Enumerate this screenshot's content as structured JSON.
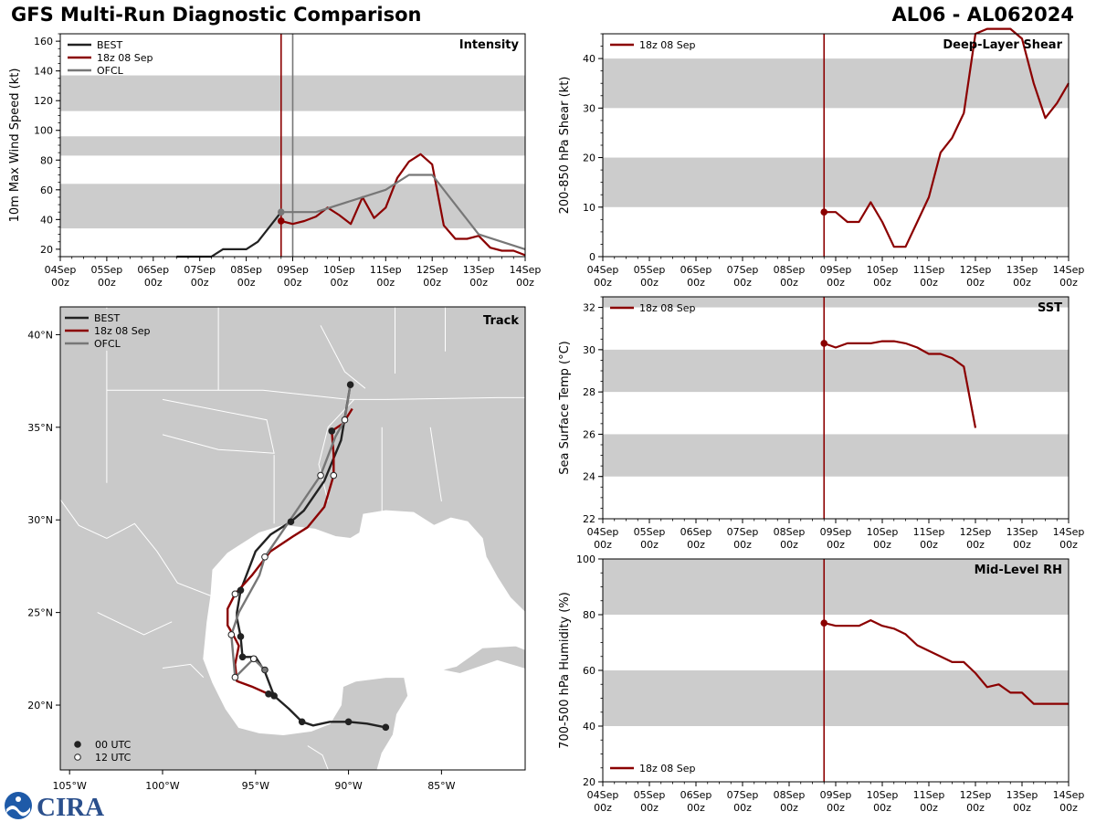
{
  "header": {
    "title": "GFS Multi-Run Diagnostic Comparison",
    "storm_id": "AL06 - AL062024"
  },
  "colors": {
    "best": "#222222",
    "run": "#8b0000",
    "ofcl": "#777777",
    "band": "#cccccc",
    "land": "#c9c9c9",
    "noaa": "#1e5aa8",
    "cira": "#2a4f8c"
  },
  "logo": {
    "noaa_icon": "noaa-logo-icon",
    "cira_text": "CIRA"
  },
  "time_axis": {
    "ticks": [
      [
        "04Sep",
        "00z"
      ],
      [
        "05Sep",
        "00z"
      ],
      [
        "06Sep",
        "00z"
      ],
      [
        "07Sep",
        "00z"
      ],
      [
        "08Sep",
        "00z"
      ],
      [
        "09Sep",
        "00z"
      ],
      [
        "10Sep",
        "00z"
      ],
      [
        "11Sep",
        "00z"
      ],
      [
        "12Sep",
        "00z"
      ],
      [
        "13Sep",
        "00z"
      ],
      [
        "14Sep",
        "00z"
      ]
    ]
  },
  "chart_data": [
    {
      "id": "intensity",
      "type": "line",
      "title": "Intensity",
      "title_loc": "top-right",
      "ylabel": "10m Max Wind Speed (kt)",
      "ylim": [
        15,
        165
      ],
      "yticks": [
        20,
        40,
        60,
        80,
        100,
        120,
        140,
        160
      ],
      "xlim_days": [
        0,
        10
      ],
      "bands": [
        [
          34,
          64
        ],
        [
          83,
          96
        ],
        [
          113,
          137
        ]
      ],
      "vlines": [
        {
          "x": 4.75,
          "color": "run"
        },
        {
          "x": 5.0,
          "color": "ofcl"
        }
      ],
      "legend_loc": "top-left",
      "series": [
        {
          "name": "BEST",
          "color": "best",
          "x": [
            2.5,
            3.25,
            3.5,
            4.0,
            4.25,
            4.75
          ],
          "y": [
            15,
            15,
            20,
            20,
            25,
            45
          ]
        },
        {
          "name": "18z 08 Sep",
          "color": "run",
          "marker_first": true,
          "x": [
            4.75,
            5.0,
            5.25,
            5.5,
            5.75,
            6.0,
            6.25,
            6.5,
            6.75,
            7.0,
            7.25,
            7.5,
            7.75,
            8.0,
            8.25,
            8.5,
            8.75,
            9.0,
            9.25,
            9.5,
            9.75,
            10.0
          ],
          "y": [
            39,
            37,
            39,
            42,
            48,
            43,
            37,
            55,
            41,
            48,
            68,
            79,
            84,
            77,
            36,
            27,
            27,
            29,
            21,
            19,
            19,
            16
          ]
        },
        {
          "name": "OFCL",
          "color": "ofcl",
          "marker_first": true,
          "x": [
            4.75,
            5.0,
            5.5,
            6.5,
            7.0,
            7.5,
            8.0,
            9.0,
            10.0
          ],
          "y": [
            45,
            45,
            45,
            55,
            60,
            70,
            70,
            30,
            20
          ]
        }
      ]
    },
    {
      "id": "shear",
      "type": "line",
      "title": "Deep-Layer Shear",
      "title_loc": "top-right",
      "ylabel": "200-850 hPa Shear (kt)",
      "ylim": [
        0,
        45
      ],
      "yticks": [
        0,
        10,
        20,
        30,
        40
      ],
      "xlim_days": [
        0,
        10
      ],
      "bands": [
        [
          10,
          20
        ],
        [
          30,
          40
        ]
      ],
      "vlines": [
        {
          "x": 4.75,
          "color": "run"
        }
      ],
      "legend_loc": "top-left",
      "series": [
        {
          "name": "18z 08 Sep",
          "color": "run",
          "marker_first": true,
          "x": [
            4.75,
            5.0,
            5.25,
            5.5,
            5.75,
            6.0,
            6.25,
            6.5,
            6.75,
            7.0,
            7.25,
            7.5,
            7.75,
            8.0,
            8.25,
            8.5,
            8.75,
            9.0,
            9.25,
            9.5,
            9.75,
            10.0
          ],
          "y": [
            9,
            9,
            7,
            7,
            11,
            7,
            2,
            2,
            7,
            12,
            21,
            24,
            29,
            45,
            46,
            46,
            46,
            44,
            35,
            28,
            31,
            35
          ]
        }
      ]
    },
    {
      "id": "sst",
      "type": "line",
      "title": "SST",
      "title_loc": "top-right",
      "ylabel": "Sea Surface Temp (°C)",
      "ylim": [
        22,
        32.5
      ],
      "yticks": [
        22,
        24,
        26,
        28,
        30,
        32
      ],
      "xlim_days": [
        0,
        10
      ],
      "bands": [
        [
          24,
          26
        ],
        [
          28,
          30
        ],
        [
          32,
          32.5
        ]
      ],
      "vlines": [
        {
          "x": 4.75,
          "color": "run"
        }
      ],
      "legend_loc": "top-left",
      "series": [
        {
          "name": "18z 08 Sep",
          "color": "run",
          "marker_first": true,
          "x": [
            4.75,
            5.0,
            5.25,
            5.5,
            5.75,
            6.0,
            6.25,
            6.5,
            6.75,
            7.0,
            7.25,
            7.5,
            7.75,
            8.0
          ],
          "y": [
            30.3,
            30.1,
            30.3,
            30.3,
            30.3,
            30.4,
            30.4,
            30.3,
            30.1,
            29.8,
            29.8,
            29.6,
            29.2,
            26.3
          ]
        }
      ]
    },
    {
      "id": "rh",
      "type": "line",
      "title": "Mid-Level RH",
      "title_loc": "top-right",
      "ylabel": "700-500 hPa Humidity (%)",
      "ylim": [
        20,
        100
      ],
      "yticks": [
        20,
        40,
        60,
        80,
        100
      ],
      "xlim_days": [
        0,
        10
      ],
      "bands": [
        [
          40,
          60
        ],
        [
          80,
          100
        ]
      ],
      "vlines": [
        {
          "x": 4.75,
          "color": "run"
        }
      ],
      "legend_loc": "bottom-left",
      "series": [
        {
          "name": "18z 08 Sep",
          "color": "run",
          "marker_first": true,
          "x": [
            4.75,
            5.0,
            5.25,
            5.5,
            5.75,
            6.0,
            6.25,
            6.5,
            6.75,
            7.0,
            7.25,
            7.5,
            7.75,
            8.0,
            8.25,
            8.5,
            8.75,
            9.0,
            9.25,
            9.5,
            9.75,
            10.0
          ],
          "y": [
            77,
            76,
            76,
            76,
            78,
            76,
            75,
            73,
            69,
            67,
            65,
            63,
            63,
            59,
            54,
            55,
            52,
            52,
            48,
            48,
            48,
            48
          ]
        }
      ]
    },
    {
      "id": "track",
      "type": "scatter",
      "title": "Track",
      "title_loc": "top-right",
      "xlim_lon": [
        -105.5,
        -80.5
      ],
      "ylim_lat": [
        16.5,
        41.5
      ],
      "xticks": [
        -105,
        -100,
        -95,
        -90,
        -85
      ],
      "xtick_labels": [
        "105°W",
        "100°W",
        "95°W",
        "90°W",
        "85°W"
      ],
      "yticks": [
        20,
        25,
        30,
        35,
        40
      ],
      "ytick_labels": [
        "20°N",
        "25°N",
        "30°N",
        "35°N",
        "40°N"
      ],
      "legend_loc": "top-left",
      "marker_legend": [
        {
          "label": "00 UTC",
          "fill": "filled"
        },
        {
          "label": "12 UTC",
          "fill": "open"
        }
      ],
      "series": [
        {
          "name": "BEST",
          "color": "best",
          "lon": [
            -88.0,
            -89.0,
            -90.0,
            -91.0,
            -91.9,
            -92.5,
            -93.2,
            -94.0,
            -94.5,
            -95.0,
            -95.7,
            -95.8,
            -96.0,
            -96.0,
            -95.8,
            -95.0,
            -94.2,
            -93.1,
            -92.4,
            -91.3,
            -90.4,
            -89.9
          ],
          "lat": [
            18.8,
            19.0,
            19.1,
            19.1,
            18.9,
            19.1,
            19.8,
            20.5,
            21.8,
            22.6,
            22.6,
            23.7,
            24.7,
            25.0,
            26.2,
            28.3,
            29.2,
            29.9,
            30.5,
            32.1,
            34.3,
            37.3
          ],
          "dots": [
            {
              "i": 0,
              "open": false
            },
            {
              "i": 2,
              "open": false
            },
            {
              "i": 5,
              "open": false
            },
            {
              "i": 7,
              "open": false
            },
            {
              "i": 10,
              "open": false
            },
            {
              "i": 11,
              "open": false
            },
            {
              "i": 14,
              "open": false
            },
            {
              "i": 17,
              "open": false
            },
            {
              "i": 21,
              "open": false
            }
          ]
        },
        {
          "name": "18z 08 Sep",
          "color": "run",
          "lon": [
            -94.3,
            -95.2,
            -96.0,
            -96.1,
            -95.9,
            -96.2,
            -96.5,
            -96.5,
            -96.1,
            -95.2,
            -94.2,
            -93.0,
            -92.2,
            -91.3,
            -90.8,
            -90.8,
            -90.9,
            -90.3,
            -89.8
          ],
          "lat": [
            20.6,
            21.0,
            21.3,
            22.2,
            23.2,
            23.8,
            24.3,
            25.2,
            26.0,
            27.0,
            28.3,
            29.1,
            29.6,
            30.7,
            32.4,
            33.5,
            34.8,
            35.2,
            36.0
          ],
          "dots": [
            {
              "i": 0,
              "open": false
            },
            {
              "i": 8,
              "open": true
            },
            {
              "i": 14,
              "open": true
            },
            {
              "i": 16,
              "open": false
            }
          ]
        },
        {
          "name": "OFCL",
          "color": "ofcl",
          "lon": [
            -94.5,
            -95.1,
            -96.1,
            -96.3,
            -95.9,
            -94.8,
            -94.5,
            -93.2,
            -91.5,
            -90.7,
            -90.2,
            -89.9
          ],
          "lat": [
            21.9,
            22.5,
            21.5,
            23.8,
            25.0,
            27.0,
            28.0,
            29.9,
            32.4,
            34.5,
            35.4,
            37.3
          ],
          "dots": [
            {
              "i": 0,
              "open": false
            },
            {
              "i": 1,
              "open": true
            },
            {
              "i": 2,
              "open": true
            },
            {
              "i": 3,
              "open": true
            },
            {
              "i": 6,
              "open": true
            },
            {
              "i": 8,
              "open": true
            },
            {
              "i": 10,
              "open": true
            }
          ]
        }
      ]
    }
  ]
}
